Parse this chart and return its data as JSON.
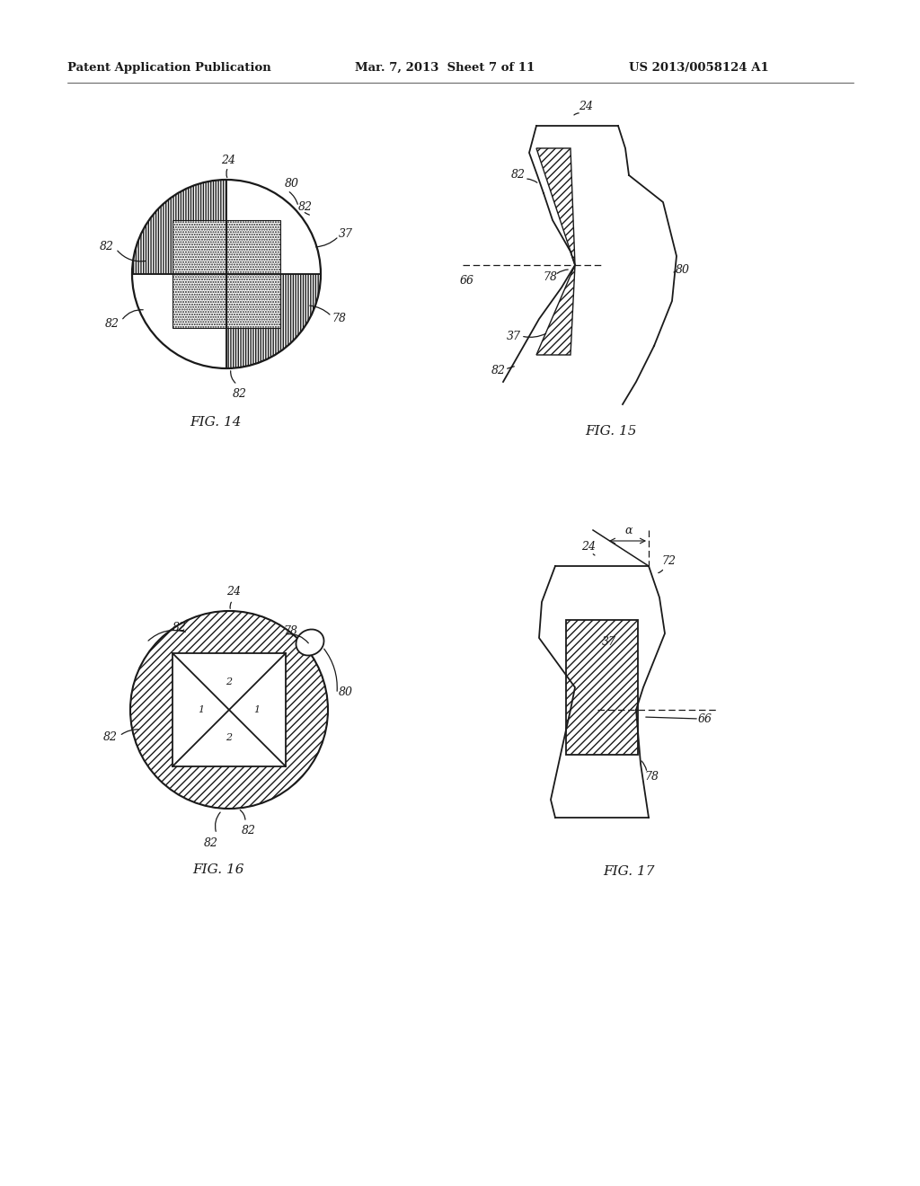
{
  "bg_color": "#ffffff",
  "header_left": "Patent Application Publication",
  "header_mid": "Mar. 7, 2013  Sheet 7 of 11",
  "header_right": "US 2013/0058124 A1",
  "fig14_label": "FIG. 14",
  "fig15_label": "FIG. 15",
  "fig16_label": "FIG. 16",
  "fig17_label": "FIG. 17",
  "line_color": "#1a1a1a",
  "label_color": "#1a1a1a",
  "font_size_header": 9.5,
  "font_size_label": 11,
  "font_size_ref": 9
}
